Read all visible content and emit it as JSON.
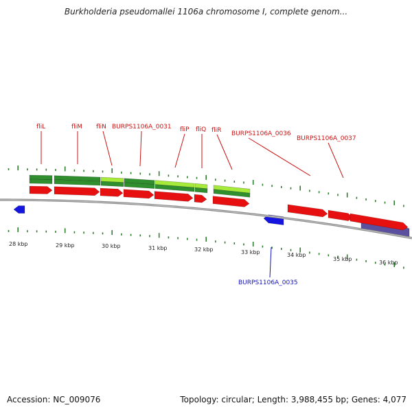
{
  "title": "Burkholderia pseudomallei 1106a chromosome I, complete genom...",
  "footer": {
    "accession": "Accession: NC_009076",
    "summary": "Topology: circular; Length: 3,988,455 bp; Genes: 4,077"
  },
  "colors": {
    "backbone": "#8a8a8a",
    "tick": "#2e7d2e",
    "cds_red": "#e61010",
    "gene_green": "#2f8f2f",
    "gene_lightgreen": "#a6ea3a",
    "gene_purple": "#5b4fa0",
    "cds_blue": "#1515e0",
    "label_red": "#cc1111",
    "label_blue": "#1111bb"
  },
  "scale_labels": [
    "28 kbp",
    "29 kbp",
    "30 kbp",
    "31 kbp",
    "32 kbp",
    "33 kbp",
    "34 kbp",
    "35 kbp",
    "36 kbp"
  ],
  "top_labels": [
    "fliL",
    "fliM",
    "fliN",
    "BURPS1106A_0031",
    "fliP",
    "fliQ",
    "fliR",
    "BURPS1106A_0036",
    "BURPS1106A_0037"
  ],
  "bottom_labels": [
    "BURPS1106A_0035"
  ]
}
